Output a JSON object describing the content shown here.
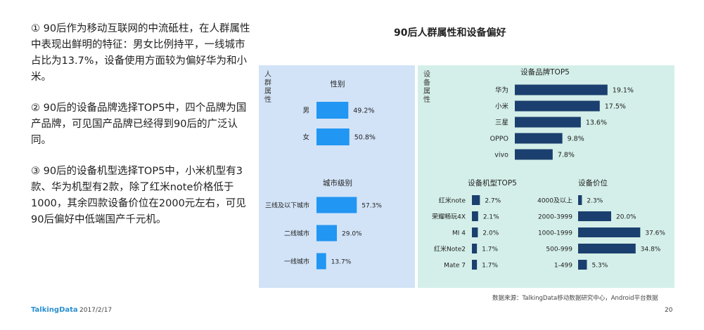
{
  "paragraphs": [
    "① 90后作为移动互联网的中流砥柱，在人群属性中表现出鲜明的特征：男女比例持平，一线城市占比为13.7%，设备使用方面较为偏好华为和小米。",
    "② 90后的设备品牌选择TOP5中，四个品牌为国产品牌，可见国产品牌已经得到90后的广泛认同。",
    "③ 90后的设备机型选择TOP5中，小米机型有3款、华为机型有2款，除了红米note价格低于1000，其余四款设备价位在2000元左右，可见90后偏好中低端国产千元机。"
  ],
  "main_title": "90后人群属性和设备偏好",
  "left_panel_label": "人群属性",
  "right_panel_label": "设备属性",
  "colors": {
    "bar": "#1b3f6e",
    "bar_light": "#2196f3",
    "left_bg": "#d2e3f7",
    "right_bg": "#d4efe9"
  },
  "chart_data": [
    {
      "type": "bar",
      "orientation": "horizontal",
      "title": "性别",
      "categories": [
        "男",
        "女"
      ],
      "values": [
        49.2,
        50.8
      ],
      "labels": [
        "49.2%",
        "50.8%"
      ]
    },
    {
      "type": "bar",
      "orientation": "horizontal",
      "title": "城市级别",
      "categories": [
        "三线及以下城市",
        "二线城市",
        "一线城市"
      ],
      "values": [
        57.3,
        29.0,
        13.7
      ],
      "labels": [
        "57.3%",
        "29.0%",
        "13.7%"
      ]
    },
    {
      "type": "bar",
      "orientation": "horizontal",
      "title": "设备品牌TOP5",
      "categories": [
        "华为",
        "小米",
        "三星",
        "OPPO",
        "vivo"
      ],
      "values": [
        19.1,
        17.5,
        13.6,
        9.8,
        7.8
      ],
      "labels": [
        "19.1%",
        "17.5%",
        "13.6%",
        "9.8%",
        "7.8%"
      ]
    },
    {
      "type": "bar",
      "orientation": "horizontal",
      "title": "设备机型TOP5",
      "categories": [
        "红米note",
        "荣耀畅玩4X",
        "MI 4",
        "红米Note2",
        "Mate 7"
      ],
      "values": [
        2.7,
        2.1,
        2.0,
        1.7,
        1.7
      ],
      "labels": [
        "2.7%",
        "2.1%",
        "2.0%",
        "1.7%",
        "1.7%"
      ]
    },
    {
      "type": "bar",
      "orientation": "horizontal",
      "title": "设备价位",
      "categories": [
        "4000及以上",
        "2000-3999",
        "1000-1999",
        "500-999",
        "1-499"
      ],
      "values": [
        2.3,
        20.0,
        37.6,
        34.8,
        5.3
      ],
      "labels": [
        "2.3%",
        "20.0%",
        "37.6%",
        "34.8%",
        "5.3%"
      ]
    }
  ],
  "footer": {
    "logo": "TalkingData",
    "date": "2017/2/17",
    "source": "数据来源：TalkingData移动数据研究中心，Android平台数据",
    "page": "20"
  }
}
